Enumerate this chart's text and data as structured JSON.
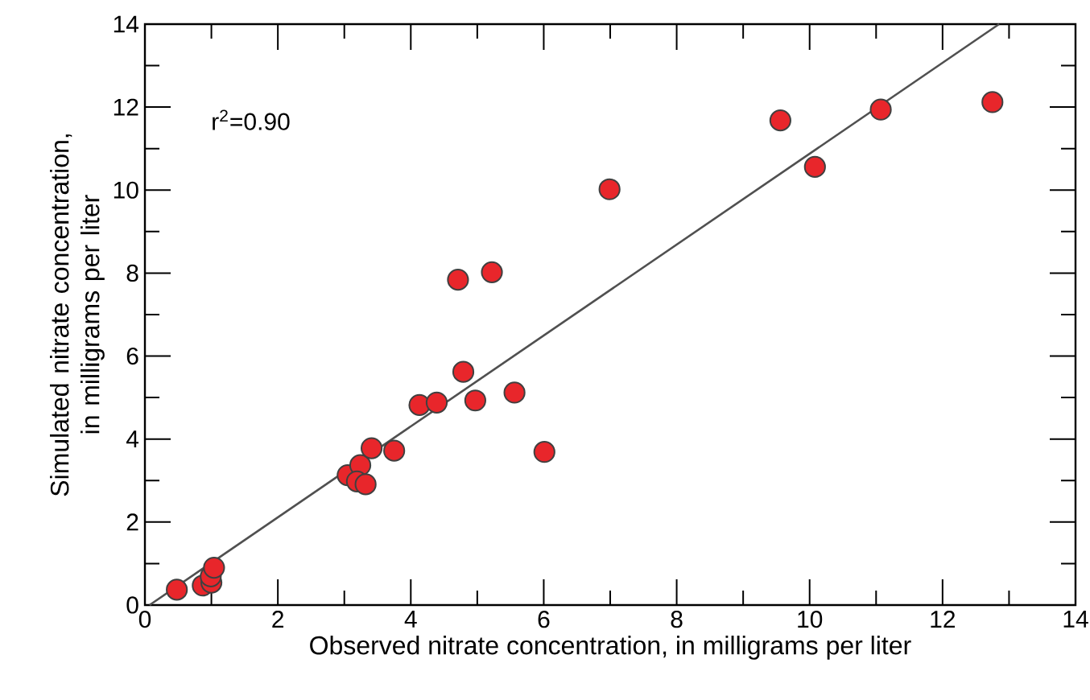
{
  "chart_data": {
    "type": "scatter",
    "xlabel": "Observed nitrate concentration, in milligrams per liter",
    "ylabel": "Simulated nitrate concentration, in milligrams per liter",
    "annotations": [
      "r$^{2}$=0.90"
    ],
    "xlim": [
      0,
      14
    ],
    "ylim": [
      0,
      14
    ],
    "xticks": [
      0,
      {
        "value": 1,
        "label": null
      },
      2,
      {
        "value": 3,
        "label": null
      },
      4,
      {
        "value": 5,
        "label": null
      },
      6,
      {
        "value": 7,
        "label": null
      },
      8,
      {
        "value": 9,
        "label": null
      },
      10,
      {
        "value": 11,
        "label": null
      },
      12,
      {
        "value": 13,
        "label": null
      },
      14
    ],
    "yticks": [
      0,
      {
        "value": 1,
        "label": null
      },
      2,
      {
        "value": 3,
        "label": null
      },
      4,
      {
        "value": 5,
        "label": null
      },
      6,
      {
        "value": 7,
        "label": null
      },
      8,
      {
        "value": 9,
        "label": null
      },
      10,
      {
        "value": 11,
        "label": null
      },
      12,
      {
        "value": 13,
        "label": null
      },
      14
    ],
    "grid": false,
    "series": [
      {
        "type": "line",
        "marker": "none",
        "color": "#505050",
        "line_style": "solid",
        "x": [
          0.07,
          12.85
        ],
        "values": [
          0,
          14
        ]
      },
      {
        "marker": "circle",
        "color": "#e8262b",
        "x": [
          0.48,
          0.87,
          1.0,
          0.99,
          1.04,
          3.05,
          3.24,
          3.19,
          3.32,
          3.41,
          3.75,
          6.01,
          4.71,
          5.22,
          4.79,
          4.13,
          4.39,
          4.97,
          5.56,
          6.99,
          9.56,
          10.08,
          11.07,
          12.75
        ],
        "values": [
          0.37,
          0.47,
          0.54,
          0.69,
          0.9,
          3.13,
          3.37,
          2.98,
          2.91,
          3.78,
          3.72,
          3.69,
          7.84,
          8.02,
          5.62,
          4.82,
          4.88,
          4.93,
          5.12,
          10.02,
          11.68,
          10.56,
          11.94,
          12.12
        ]
      }
    ]
  }
}
